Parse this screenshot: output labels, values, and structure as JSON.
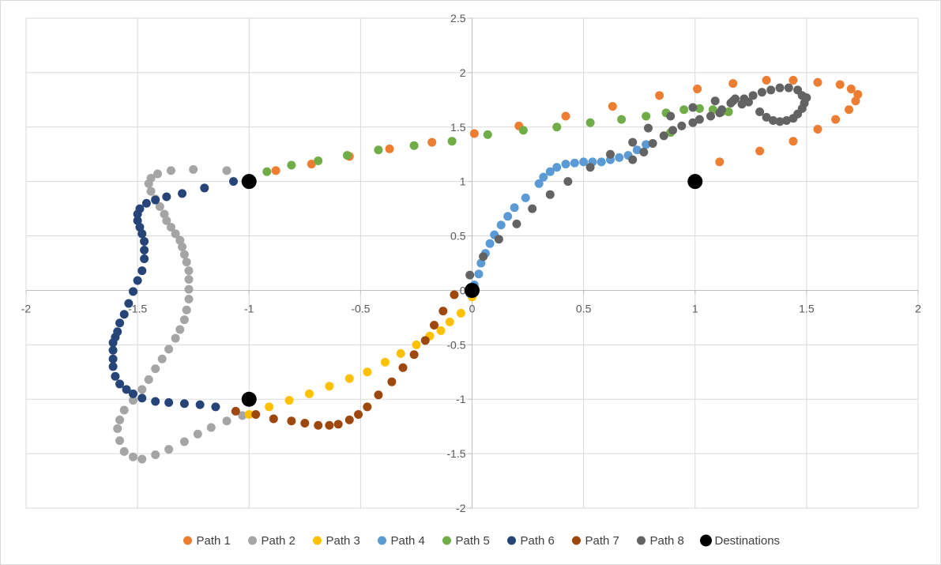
{
  "chart_data": {
    "type": "scatter",
    "title": "",
    "xlabel": "",
    "ylabel": "",
    "xlim": [
      -2,
      2
    ],
    "ylim": [
      -2,
      2.5
    ],
    "x_ticks": [
      "-2",
      "-1.5",
      "-1",
      "-0.5",
      "0",
      "0.5",
      "1",
      "1.5",
      "2"
    ],
    "y_ticks": [
      "2.5",
      "2",
      "1.5",
      "1",
      "0.5",
      "0",
      "-0.5",
      "-1",
      "-1.5",
      "-2"
    ],
    "grid": true,
    "legend_position": "bottom",
    "series": [
      {
        "name": "Path 1",
        "color": "#ED7D31",
        "points": [
          [
            1.11,
            1.18
          ],
          [
            1.29,
            1.28
          ],
          [
            1.44,
            1.37
          ],
          [
            1.55,
            1.48
          ],
          [
            1.63,
            1.57
          ],
          [
            1.69,
            1.66
          ],
          [
            1.72,
            1.74
          ],
          [
            1.73,
            1.8
          ],
          [
            1.7,
            1.85
          ],
          [
            1.65,
            1.89
          ],
          [
            1.55,
            1.91
          ],
          [
            1.44,
            1.93
          ],
          [
            1.32,
            1.93
          ],
          [
            1.17,
            1.9
          ],
          [
            1.01,
            1.85
          ],
          [
            0.84,
            1.79
          ],
          [
            0.63,
            1.69
          ],
          [
            0.42,
            1.6
          ],
          [
            0.21,
            1.51
          ],
          [
            0.01,
            1.44
          ],
          [
            -0.18,
            1.36
          ],
          [
            -0.37,
            1.3
          ],
          [
            -0.55,
            1.23
          ],
          [
            -0.72,
            1.16
          ],
          [
            -0.88,
            1.1
          ]
        ]
      },
      {
        "name": "Path 2",
        "color": "#A5A5A5",
        "points": [
          [
            -1.1,
            1.1
          ],
          [
            -1.25,
            1.11
          ],
          [
            -1.35,
            1.1
          ],
          [
            -1.41,
            1.07
          ],
          [
            -1.44,
            1.03
          ],
          [
            -1.45,
            0.98
          ],
          [
            -1.44,
            0.91
          ],
          [
            -1.42,
            0.84
          ],
          [
            -1.4,
            0.77
          ],
          [
            -1.38,
            0.7
          ],
          [
            -1.37,
            0.64
          ],
          [
            -1.35,
            0.58
          ],
          [
            -1.33,
            0.52
          ],
          [
            -1.31,
            0.46
          ],
          [
            -1.3,
            0.4
          ],
          [
            -1.29,
            0.33
          ],
          [
            -1.28,
            0.26
          ],
          [
            -1.27,
            0.18
          ],
          [
            -1.27,
            0.1
          ],
          [
            -1.27,
            0.01
          ],
          [
            -1.27,
            -0.08
          ],
          [
            -1.28,
            -0.18
          ],
          [
            -1.29,
            -0.27
          ],
          [
            -1.31,
            -0.36
          ],
          [
            -1.33,
            -0.44
          ],
          [
            -1.36,
            -0.54
          ],
          [
            -1.39,
            -0.63
          ],
          [
            -1.42,
            -0.72
          ],
          [
            -1.45,
            -0.82
          ],
          [
            -1.48,
            -0.91
          ],
          [
            -1.52,
            -1.01
          ],
          [
            -1.56,
            -1.1
          ],
          [
            -1.58,
            -1.19
          ],
          [
            -1.59,
            -1.27
          ],
          [
            -1.58,
            -1.38
          ],
          [
            -1.56,
            -1.48
          ],
          [
            -1.52,
            -1.53
          ],
          [
            -1.48,
            -1.55
          ],
          [
            -1.42,
            -1.51
          ],
          [
            -1.36,
            -1.46
          ],
          [
            -1.29,
            -1.39
          ],
          [
            -1.23,
            -1.32
          ],
          [
            -1.17,
            -1.26
          ],
          [
            -1.1,
            -1.2
          ],
          [
            -1.03,
            -1.15
          ]
        ]
      },
      {
        "name": "Path 3",
        "color": "#FFC000",
        "points": [
          [
            -1.0,
            -1.14
          ],
          [
            -0.91,
            -1.07
          ],
          [
            -0.82,
            -1.01
          ],
          [
            -0.73,
            -0.95
          ],
          [
            -0.64,
            -0.88
          ],
          [
            -0.55,
            -0.81
          ],
          [
            -0.47,
            -0.75
          ],
          [
            -0.39,
            -0.66
          ],
          [
            -0.32,
            -0.58
          ],
          [
            -0.25,
            -0.5
          ],
          [
            -0.19,
            -0.42
          ],
          [
            -0.14,
            -0.37
          ],
          [
            -0.1,
            -0.29
          ],
          [
            -0.05,
            -0.21
          ],
          [
            0.0,
            -0.06
          ]
        ]
      },
      {
        "name": "Path 4",
        "color": "#5B9BD5",
        "points": [
          [
            -0.01,
            -0.03
          ],
          [
            0.01,
            0.05
          ],
          [
            0.03,
            0.15
          ],
          [
            0.04,
            0.25
          ],
          [
            0.06,
            0.34
          ],
          [
            0.08,
            0.43
          ],
          [
            0.1,
            0.51
          ],
          [
            0.13,
            0.6
          ],
          [
            0.16,
            0.68
          ],
          [
            0.19,
            0.76
          ],
          [
            0.24,
            0.85
          ],
          [
            0.3,
            0.98
          ],
          [
            0.32,
            1.04
          ],
          [
            0.35,
            1.09
          ],
          [
            0.38,
            1.13
          ],
          [
            0.42,
            1.16
          ],
          [
            0.46,
            1.17
          ],
          [
            0.5,
            1.18
          ],
          [
            0.54,
            1.18
          ],
          [
            0.58,
            1.18
          ],
          [
            0.62,
            1.2
          ],
          [
            0.66,
            1.22
          ],
          [
            0.7,
            1.24
          ],
          [
            0.74,
            1.29
          ],
          [
            0.78,
            1.34
          ]
        ]
      },
      {
        "name": "Path 5",
        "color": "#70AD47",
        "points": [
          [
            -0.92,
            1.09
          ],
          [
            -0.81,
            1.15
          ],
          [
            -0.69,
            1.19
          ],
          [
            -0.56,
            1.24
          ],
          [
            -0.42,
            1.29
          ],
          [
            -0.26,
            1.33
          ],
          [
            -0.09,
            1.37
          ],
          [
            0.07,
            1.43
          ],
          [
            0.23,
            1.47
          ],
          [
            0.38,
            1.5
          ],
          [
            0.53,
            1.54
          ],
          [
            0.67,
            1.57
          ],
          [
            0.78,
            1.6
          ],
          [
            0.87,
            1.63
          ],
          [
            0.95,
            1.66
          ],
          [
            1.02,
            1.67
          ],
          [
            1.08,
            1.66
          ],
          [
            1.12,
            1.64
          ],
          [
            1.15,
            1.64
          ],
          [
            0.89,
            1.45
          ]
        ]
      },
      {
        "name": "Path 6",
        "color": "#264478",
        "points": [
          [
            -1.07,
            1.0
          ],
          [
            -1.2,
            0.94
          ],
          [
            -1.3,
            0.89
          ],
          [
            -1.37,
            0.86
          ],
          [
            -1.42,
            0.83
          ],
          [
            -1.46,
            0.8
          ],
          [
            -1.49,
            0.75
          ],
          [
            -1.5,
            0.7
          ],
          [
            -1.5,
            0.64
          ],
          [
            -1.49,
            0.58
          ],
          [
            -1.48,
            0.52
          ],
          [
            -1.47,
            0.45
          ],
          [
            -1.47,
            0.37
          ],
          [
            -1.47,
            0.29
          ],
          [
            -1.48,
            0.18
          ],
          [
            -1.5,
            0.09
          ],
          [
            -1.52,
            -0.01
          ],
          [
            -1.54,
            -0.12
          ],
          [
            -1.56,
            -0.22
          ],
          [
            -1.58,
            -0.3
          ],
          [
            -1.59,
            -0.38
          ],
          [
            -1.6,
            -0.43
          ],
          [
            -1.61,
            -0.48
          ],
          [
            -1.61,
            -0.55
          ],
          [
            -1.61,
            -0.63
          ],
          [
            -1.61,
            -0.7
          ],
          [
            -1.6,
            -0.79
          ],
          [
            -1.58,
            -0.86
          ],
          [
            -1.55,
            -0.91
          ],
          [
            -1.52,
            -0.95
          ],
          [
            -1.48,
            -0.99
          ],
          [
            -1.42,
            -1.02
          ],
          [
            -1.36,
            -1.03
          ],
          [
            -1.29,
            -1.04
          ],
          [
            -1.22,
            -1.05
          ],
          [
            -1.15,
            -1.07
          ]
        ]
      },
      {
        "name": "Path 7",
        "color": "#9E480E",
        "points": [
          [
            -1.06,
            -1.11
          ],
          [
            -0.97,
            -1.14
          ],
          [
            -0.89,
            -1.18
          ],
          [
            -0.81,
            -1.2
          ],
          [
            -0.75,
            -1.22
          ],
          [
            -0.69,
            -1.24
          ],
          [
            -0.64,
            -1.24
          ],
          [
            -0.6,
            -1.23
          ],
          [
            -0.55,
            -1.19
          ],
          [
            -0.51,
            -1.14
          ],
          [
            -0.47,
            -1.07
          ],
          [
            -0.42,
            -0.96
          ],
          [
            -0.36,
            -0.84
          ],
          [
            -0.31,
            -0.71
          ],
          [
            -0.26,
            -0.59
          ],
          [
            -0.21,
            -0.46
          ],
          [
            -0.17,
            -0.32
          ],
          [
            -0.13,
            -0.19
          ],
          [
            -0.08,
            -0.04
          ]
        ]
      },
      {
        "name": "Path 8",
        "color": "#636363",
        "points": [
          [
            -0.01,
            0.14
          ],
          [
            0.05,
            0.31
          ],
          [
            0.12,
            0.47
          ],
          [
            0.2,
            0.61
          ],
          [
            0.27,
            0.75
          ],
          [
            0.35,
            0.88
          ],
          [
            0.43,
            1.0
          ],
          [
            0.53,
            1.13
          ],
          [
            0.62,
            1.25
          ],
          [
            0.72,
            1.2
          ],
          [
            0.77,
            1.27
          ],
          [
            0.81,
            1.35
          ],
          [
            0.86,
            1.42
          ],
          [
            0.9,
            1.47
          ],
          [
            0.94,
            1.51
          ],
          [
            0.99,
            1.54
          ],
          [
            1.02,
            1.57
          ],
          [
            1.07,
            1.6
          ],
          [
            1.11,
            1.63
          ],
          [
            1.12,
            1.66
          ],
          [
            1.17,
            1.74
          ],
          [
            1.18,
            1.76
          ],
          [
            1.22,
            1.76
          ],
          [
            1.24,
            1.73
          ],
          [
            1.26,
            1.79
          ],
          [
            1.3,
            1.82
          ],
          [
            1.34,
            1.84
          ],
          [
            1.38,
            1.86
          ],
          [
            1.42,
            1.86
          ],
          [
            1.46,
            1.84
          ],
          [
            1.48,
            1.79
          ],
          [
            1.5,
            1.77
          ],
          [
            1.49,
            1.72
          ],
          [
            1.48,
            1.67
          ],
          [
            1.46,
            1.62
          ],
          [
            1.44,
            1.58
          ],
          [
            1.41,
            1.56
          ],
          [
            1.38,
            1.55
          ],
          [
            1.35,
            1.56
          ],
          [
            1.32,
            1.59
          ],
          [
            1.29,
            1.64
          ],
          [
            1.21,
            1.71
          ],
          [
            1.16,
            1.72
          ],
          [
            1.09,
            1.74
          ],
          [
            0.99,
            1.68
          ],
          [
            0.89,
            1.6
          ],
          [
            0.79,
            1.49
          ],
          [
            0.72,
            1.36
          ]
        ]
      },
      {
        "name": "Destinations",
        "color": "#000000",
        "points": [
          [
            -1,
            1
          ],
          [
            0,
            0
          ],
          [
            1,
            1
          ],
          [
            -1,
            -1
          ]
        ]
      }
    ]
  }
}
